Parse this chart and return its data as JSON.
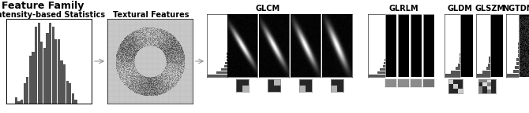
{
  "title": "Feature Family",
  "title_fontsize": 9,
  "title_fontweight": "bold",
  "labels": [
    "Intensity-based Statistics",
    "Textural Features",
    "GLCM",
    "GLRLM",
    "GLDM",
    "GLSZM",
    "NGTDM"
  ],
  "label_fontsize": 7,
  "label_fontweight": "bold",
  "bg_color": "#ffffff",
  "text_color": "#000000",
  "gray_bar": "#555555",
  "black": "#000000",
  "white": "#ffffff",
  "fig_width": 6.7,
  "fig_height": 1.44,
  "dpi": 100
}
